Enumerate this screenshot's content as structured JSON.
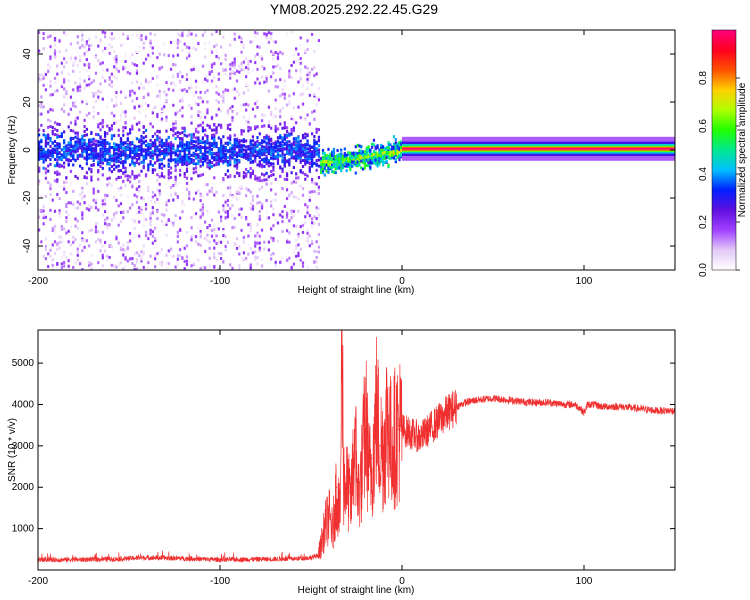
{
  "title": "YM08.2025.292.22.45.G29",
  "chart_data": [
    {
      "type": "heatmap",
      "xlabel": "Height of straight line (km)",
      "ylabel": "Frequency (Hz)",
      "xlim": [
        -200,
        150
      ],
      "ylim": [
        -50,
        50
      ],
      "x_ticks": [
        -200,
        -100,
        0,
        100
      ],
      "y_ticks": [
        -40,
        -20,
        0,
        20,
        40
      ],
      "colorbar": {
        "label": "Normalized spectral amplitude",
        "range": [
          0,
          1
        ],
        "ticks": [
          "0.0",
          "0.2",
          "0.4",
          "0.6",
          "0.8"
        ],
        "colors": [
          "#ffffff",
          "#e3c9f7",
          "#a040ff",
          "#6010e0",
          "#0020ff",
          "#00c0ff",
          "#00e890",
          "#20ff00",
          "#b0ff00",
          "#ffd000",
          "#ff5000",
          "#ff0020",
          "#ff0080"
        ]
      },
      "features": [
        {
          "name": "noise_region",
          "x_range": [
            -200,
            -45
          ],
          "band_hz": [
            -10,
            10
          ],
          "amplitude": 0.25
        },
        {
          "name": "transition",
          "x_range": [
            -45,
            0
          ],
          "center_hz": [
            -5,
            0
          ],
          "amplitude": 0.55
        },
        {
          "name": "carrier_line",
          "x_range": [
            0,
            150
          ],
          "center_hz": [
            0,
            1
          ],
          "amplitude": 1.0
        }
      ]
    },
    {
      "type": "line",
      "xlabel": "Height of straight line (km)",
      "ylabel": "SNR (10 * v/v)",
      "xlim": [
        -200,
        150
      ],
      "ylim": [
        0,
        5800
      ],
      "x_ticks": [
        -200,
        -100,
        0,
        100
      ],
      "y_ticks": [
        1000,
        2000,
        3000,
        4000,
        5000
      ],
      "color": "#f03030",
      "series": [
        {
          "name": "SNR",
          "x": [
            -200,
            -180,
            -160,
            -140,
            -120,
            -100,
            -80,
            -60,
            -50,
            -46,
            -44,
            -42,
            -40,
            -38,
            -36,
            -34,
            -33,
            -32,
            -30,
            -28,
            -26,
            -24,
            -22,
            -20,
            -18,
            -16,
            -14,
            -12,
            -10,
            -8,
            -6,
            -4,
            -2,
            0,
            5,
            10,
            15,
            20,
            25,
            30,
            35,
            40,
            50,
            60,
            70,
            80,
            90,
            95,
            98,
            100,
            102,
            105,
            110,
            120,
            130,
            140,
            150
          ],
          "y": [
            250,
            250,
            260,
            300,
            280,
            250,
            260,
            270,
            300,
            350,
            700,
            1100,
            1300,
            900,
            2000,
            1200,
            5650,
            2200,
            2000,
            1600,
            3200,
            1800,
            2400,
            3600,
            2300,
            2700,
            3800,
            3000,
            2900,
            3800,
            3000,
            3200,
            3400,
            3400,
            3300,
            3200,
            3400,
            3600,
            3800,
            3950,
            4050,
            4100,
            4150,
            4100,
            4050,
            4050,
            4000,
            4000,
            3900,
            3800,
            4000,
            4000,
            3950,
            3950,
            3900,
            3850,
            3850
          ]
        }
      ]
    }
  ]
}
